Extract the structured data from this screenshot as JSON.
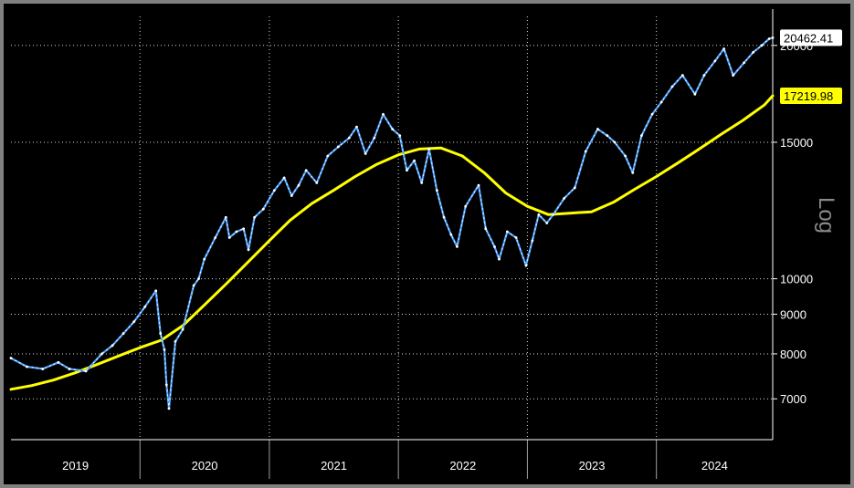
{
  "chart_data": {
    "type": "line",
    "scale_label": "Log",
    "y_scale": "log",
    "ylim": [
      6200,
      21800
    ],
    "xlim": [
      "2019-01-01",
      "2024-11-25"
    ],
    "y_ticks": [
      {
        "value": 7000,
        "label": "7000"
      },
      {
        "value": 8000,
        "label": "8000"
      },
      {
        "value": 9000,
        "label": "9000"
      },
      {
        "value": 10000,
        "label": "10000"
      },
      {
        "value": 15000,
        "label": "15000"
      },
      {
        "value": 20000,
        "label": "20000"
      }
    ],
    "x_ticks": [
      "2019",
      "2020",
      "2021",
      "2022",
      "2023",
      "2024"
    ],
    "grid": true,
    "colors": {
      "background": "#000000",
      "price": "#4da3ff",
      "moving_average": "#ffff00",
      "grid": "#ffffff",
      "frame": "#808080"
    },
    "last_values": [
      {
        "series": "price",
        "label": "20462.41",
        "value": 20462.41,
        "box_color": "#ffffff",
        "text_color": "#000000"
      },
      {
        "series": "moving_average",
        "label": "17219.98",
        "value": 17219.98,
        "box_color": "#ffff00",
        "text_color": "#000000"
      }
    ],
    "series": [
      {
        "id": "price",
        "x": [
          "2019-01-01",
          "2019-02-15",
          "2019-04-01",
          "2019-05-15",
          "2019-06-15",
          "2019-08-01",
          "2019-09-15",
          "2019-10-15",
          "2019-11-15",
          "2019-12-15",
          "2020-01-15",
          "2020-02-15",
          "2020-02-28",
          "2020-03-10",
          "2020-03-16",
          "2020-03-23",
          "2020-04-10",
          "2020-05-01",
          "2020-06-01",
          "2020-06-15",
          "2020-07-01",
          "2020-08-01",
          "2020-08-31",
          "2020-09-10",
          "2020-09-30",
          "2020-10-20",
          "2020-11-03",
          "2020-11-20",
          "2020-12-15",
          "2021-01-15",
          "2021-02-12",
          "2021-03-05",
          "2021-03-25",
          "2021-04-15",
          "2021-05-15",
          "2021-06-15",
          "2021-07-15",
          "2021-08-15",
          "2021-09-05",
          "2021-09-30",
          "2021-10-25",
          "2021-11-19",
          "2021-12-15",
          "2022-01-05",
          "2022-01-25",
          "2022-02-15",
          "2022-03-08",
          "2022-03-29",
          "2022-04-20",
          "2022-05-10",
          "2022-05-30",
          "2022-06-16",
          "2022-07-10",
          "2022-08-16",
          "2022-09-05",
          "2022-09-30",
          "2022-10-13",
          "2022-11-05",
          "2022-11-30",
          "2022-12-28",
          "2023-01-15",
          "2023-02-02",
          "2023-02-25",
          "2023-03-15",
          "2023-04-15",
          "2023-05-15",
          "2023-06-15",
          "2023-07-19",
          "2023-08-15",
          "2023-09-05",
          "2023-10-05",
          "2023-10-26",
          "2023-11-20",
          "2023-12-20",
          "2024-01-15",
          "2024-02-15",
          "2024-03-15",
          "2024-04-19",
          "2024-05-15",
          "2024-06-15",
          "2024-07-10",
          "2024-08-05",
          "2024-09-05",
          "2024-10-01",
          "2024-10-25",
          "2024-11-15",
          "2024-11-25"
        ],
        "y": [
          7900,
          7700,
          7650,
          7800,
          7650,
          7600,
          8000,
          8200,
          8500,
          8800,
          9200,
          9650,
          8500,
          8100,
          7300,
          6800,
          8300,
          8600,
          9800,
          10000,
          10600,
          11300,
          12000,
          11300,
          11500,
          11600,
          10900,
          12000,
          12300,
          13000,
          13500,
          12800,
          13200,
          13800,
          13300,
          14400,
          14800,
          15200,
          15700,
          14500,
          15200,
          16300,
          15600,
          15300,
          13800,
          14200,
          13300,
          14700,
          13000,
          12000,
          11400,
          11000,
          12400,
          13200,
          11600,
          11000,
          10600,
          11500,
          11300,
          10400,
          11200,
          12100,
          11800,
          12100,
          12700,
          13100,
          14600,
          15600,
          15300,
          15000,
          14400,
          13700,
          15300,
          16300,
          16900,
          17700,
          18300,
          17300,
          18300,
          19100,
          19800,
          18300,
          19000,
          19600,
          20000,
          20400,
          20462.41
        ]
      },
      {
        "id": "moving_average",
        "x": [
          "2019-01-01",
          "2019-03-01",
          "2019-05-01",
          "2019-07-01",
          "2019-09-01",
          "2019-11-01",
          "2020-01-01",
          "2020-03-01",
          "2020-05-01",
          "2020-07-01",
          "2020-09-01",
          "2020-11-01",
          "2021-01-01",
          "2021-03-01",
          "2021-05-01",
          "2021-07-01",
          "2021-09-01",
          "2021-11-01",
          "2022-01-01",
          "2022-03-01",
          "2022-05-01",
          "2022-07-01",
          "2022-09-01",
          "2022-11-01",
          "2023-01-01",
          "2023-03-01",
          "2023-05-01",
          "2023-07-01",
          "2023-09-01",
          "2023-11-01",
          "2024-01-01",
          "2024-03-01",
          "2024-05-01",
          "2024-07-01",
          "2024-09-01",
          "2024-11-01",
          "2024-11-25"
        ],
        "y": [
          7200,
          7280,
          7400,
          7560,
          7750,
          7950,
          8150,
          8330,
          8700,
          9250,
          9850,
          10500,
          11200,
          11900,
          12500,
          13000,
          13550,
          14050,
          14450,
          14700,
          14750,
          14400,
          13700,
          12900,
          12400,
          12100,
          12150,
          12200,
          12550,
          13050,
          13550,
          14100,
          14700,
          15350,
          16000,
          16750,
          17219.98
        ]
      }
    ]
  }
}
